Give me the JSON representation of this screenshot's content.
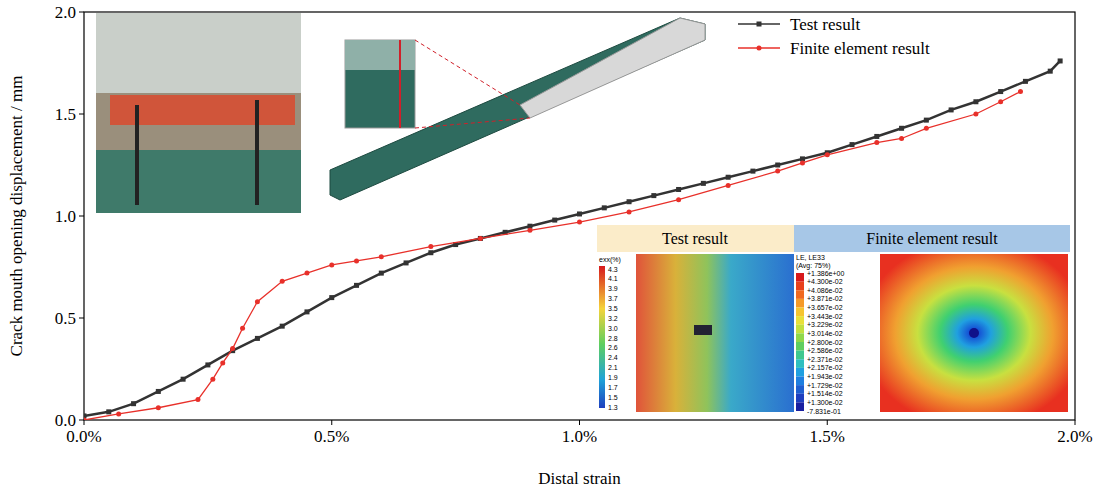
{
  "chart_data": {
    "type": "line",
    "x_label": "Distal strain",
    "y_label": "Crack mouth opening displacement / mm",
    "xlim": [
      0,
      2
    ],
    "ylim": [
      0,
      2
    ],
    "xticks": [
      {
        "value": 0,
        "label": "0.0%"
      },
      {
        "value": 0.5,
        "label": "0.5%"
      },
      {
        "value": 1,
        "label": "1.0%"
      },
      {
        "value": 1.5,
        "label": "1.5%"
      },
      {
        "value": 2,
        "label": "2.0%"
      }
    ],
    "yticks": [
      {
        "value": 0,
        "label": "0.0"
      },
      {
        "value": 0.5,
        "label": "0.5"
      },
      {
        "value": 1,
        "label": "1.0"
      },
      {
        "value": 1.5,
        "label": "1.5"
      },
      {
        "value": 2,
        "label": "2.0"
      }
    ],
    "grid": false,
    "legend": "top-right",
    "series": [
      {
        "name": "Test result",
        "color": "#333333",
        "marker": "square",
        "line_style": "solid",
        "x": [
          0,
          0.05,
          0.1,
          0.15,
          0.2,
          0.25,
          0.3,
          0.35,
          0.4,
          0.45,
          0.5,
          0.55,
          0.6,
          0.65,
          0.7,
          0.75,
          0.8,
          0.85,
          0.9,
          0.95,
          1.0,
          1.05,
          1.1,
          1.15,
          1.2,
          1.25,
          1.3,
          1.35,
          1.4,
          1.45,
          1.5,
          1.55,
          1.6,
          1.65,
          1.7,
          1.75,
          1.8,
          1.85,
          1.9,
          1.95,
          1.97
        ],
        "values": [
          0.02,
          0.04,
          0.08,
          0.14,
          0.2,
          0.27,
          0.34,
          0.4,
          0.46,
          0.53,
          0.6,
          0.66,
          0.72,
          0.77,
          0.82,
          0.86,
          0.89,
          0.92,
          0.95,
          0.98,
          1.01,
          1.04,
          1.07,
          1.1,
          1.13,
          1.16,
          1.19,
          1.22,
          1.25,
          1.28,
          1.31,
          1.35,
          1.39,
          1.43,
          1.47,
          1.52,
          1.56,
          1.61,
          1.66,
          1.71,
          1.76
        ]
      },
      {
        "name": "Finite element result",
        "color": "#e8302a",
        "marker": "circle",
        "line_style": "solid",
        "x": [
          0,
          0.07,
          0.15,
          0.23,
          0.26,
          0.28,
          0.3,
          0.32,
          0.35,
          0.4,
          0.45,
          0.5,
          0.55,
          0.6,
          0.7,
          0.8,
          0.9,
          1.0,
          1.1,
          1.2,
          1.3,
          1.4,
          1.45,
          1.5,
          1.6,
          1.65,
          1.7,
          1.8,
          1.85,
          1.89
        ],
        "values": [
          0,
          0.03,
          0.06,
          0.1,
          0.2,
          0.28,
          0.35,
          0.45,
          0.58,
          0.68,
          0.72,
          0.76,
          0.78,
          0.8,
          0.85,
          0.89,
          0.93,
          0.97,
          1.02,
          1.08,
          1.15,
          1.22,
          1.26,
          1.3,
          1.36,
          1.38,
          1.43,
          1.5,
          1.56,
          1.61
        ]
      }
    ],
    "panels": [
      {
        "title": "Test result",
        "colorbar_title": "exx(%)",
        "colorbar_ticks": [
          4.3,
          4.1,
          3.9,
          3.7,
          3.5,
          3.2,
          {
            "value": 3,
            "label": "3.0"
          },
          2.8,
          2.6,
          2.4,
          2.1,
          1.9,
          1.7,
          1.5,
          1.3
        ]
      },
      {
        "title": "Finite element result",
        "colorbar_title": "LE, LE33",
        "colorbar_subtitle": "(Avg: 75%)",
        "colorbar_ticks": [
          {
            "value": 1.386,
            "label": "+1.386e+00"
          },
          {
            "value": 0.043,
            "label": "+4.300e-02"
          },
          {
            "value": 0.04086,
            "label": "+4.086e-02"
          },
          {
            "value": 0.03871,
            "label": "+3.871e-02"
          },
          {
            "value": 0.03657,
            "label": "+3.657e-02"
          },
          {
            "value": 0.03443,
            "label": "+3.443e-02"
          },
          {
            "value": 0.03229,
            "label": "+3.229e-02"
          },
          {
            "value": 0.03014,
            "label": "+3.014e-02"
          },
          {
            "value": 0.028,
            "label": "+2.800e-02"
          },
          {
            "value": 0.02586,
            "label": "+2.586e-02"
          },
          {
            "value": 0.02371,
            "label": "+2.371e-02"
          },
          {
            "value": 0.02157,
            "label": "+2.157e-02"
          },
          {
            "value": 0.01943,
            "label": "+1.943e-02"
          },
          {
            "value": 0.01729,
            "label": "+1.729e-02"
          },
          {
            "value": 0.01514,
            "label": "+1.514e-02"
          },
          {
            "value": 0.013,
            "label": "+1.300e-02"
          },
          {
            "value": -0.7831,
            "label": "-7.831e-01"
          }
        ]
      }
    ]
  }
}
